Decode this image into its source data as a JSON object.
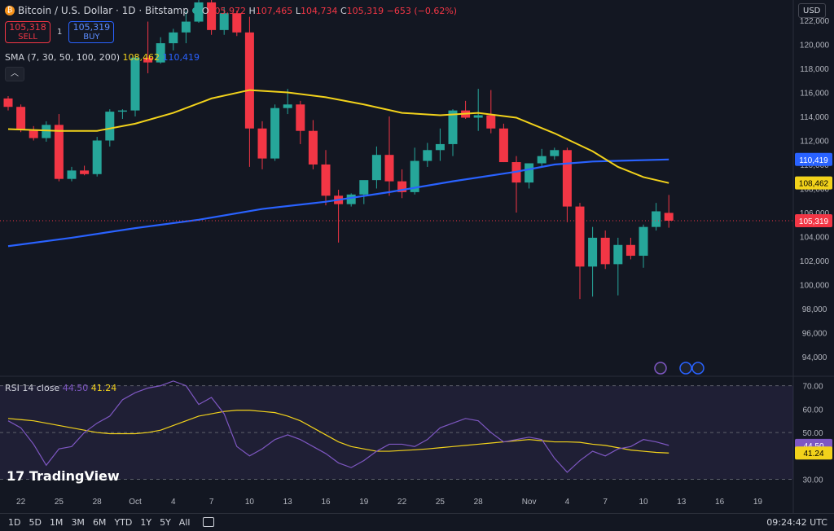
{
  "header": {
    "symbol": "Bitcoin / U.S. Dollar · 1D · Bitstamp",
    "o_label": "O",
    "o": "105,972",
    "h_label": "H",
    "h": "107,465",
    "l_label": "L",
    "l": "104,734",
    "c_label": "C",
    "c": "105,319",
    "change": "−653 (−0.62%)"
  },
  "trade": {
    "sell_price": "105,318",
    "sell_label": "SELL",
    "spread": "1",
    "buy_price": "105,319",
    "buy_label": "BUY"
  },
  "sma_legend": {
    "label": "SMA (7, 30, 50, 100, 200)",
    "v1": "108,462",
    "v2": "110,419"
  },
  "currency": "USD",
  "rsi_legend": {
    "label": "RSI 14 close",
    "v1": "44.50",
    "v2": "41.24"
  },
  "logo": "TradingView",
  "ranges": [
    "1D",
    "5D",
    "1M",
    "3M",
    "6M",
    "YTD",
    "1Y",
    "5Y",
    "All"
  ],
  "clock": "09:24:42 UTC",
  "colors": {
    "bg": "#131722",
    "up": "#26a69a",
    "down": "#f23645",
    "sma_yellow": "#f2d21b",
    "sma_blue": "#2962ff",
    "rsi": "#7e57c2"
  },
  "chart_data": [
    {
      "type": "candlestick",
      "price_axis_ticks": [
        94000,
        96000,
        98000,
        100000,
        102000,
        104000,
        106000,
        108000,
        110000,
        112000,
        114000,
        116000,
        118000,
        120000,
        122000
      ],
      "price_axis_tick_labels": [
        "94,000",
        "96,000",
        "98,000",
        "100,000",
        "102,000",
        "104,000",
        "106,000",
        "108,000",
        "110,000",
        "112,000",
        "114,000",
        "116,000",
        "118,000",
        "120,000",
        "122,000"
      ],
      "ylim": [
        92500,
        123700
      ],
      "x_tick_labels": [
        {
          "i": 1,
          "label": "22"
        },
        {
          "i": 4,
          "label": "25"
        },
        {
          "i": 7,
          "label": "28"
        },
        {
          "i": 10,
          "label": "Oct"
        },
        {
          "i": 13,
          "label": "4"
        },
        {
          "i": 16,
          "label": "7"
        },
        {
          "i": 19,
          "label": "10"
        },
        {
          "i": 22,
          "label": "13"
        },
        {
          "i": 25,
          "label": "16"
        },
        {
          "i": 28,
          "label": "19"
        },
        {
          "i": 31,
          "label": "22"
        },
        {
          "i": 34,
          "label": "25"
        },
        {
          "i": 37,
          "label": "28"
        },
        {
          "i": 41,
          "label": "Nov"
        },
        {
          "i": 44,
          "label": "4"
        },
        {
          "i": 47,
          "label": "7"
        },
        {
          "i": 50,
          "label": "10"
        },
        {
          "i": 53,
          "label": "13"
        },
        {
          "i": 56,
          "label": "16"
        },
        {
          "i": 59,
          "label": "19"
        }
      ],
      "ohlc": [
        [
          115500,
          115700,
          114500,
          114800
        ],
        [
          114800,
          115000,
          112700,
          112900
        ],
        [
          112900,
          113200,
          112000,
          112200
        ],
        [
          112200,
          113600,
          111900,
          113300
        ],
        [
          113300,
          114200,
          108600,
          108800
        ],
        [
          108800,
          109800,
          108600,
          109500
        ],
        [
          109500,
          109900,
          109100,
          109200
        ],
        [
          109200,
          112300,
          109000,
          112000
        ],
        [
          112000,
          114600,
          111500,
          114400
        ],
        [
          114400,
          114600,
          113800,
          114500
        ],
        [
          114500,
          119100,
          114000,
          118900
        ],
        [
          118900,
          121900,
          117600,
          118500
        ],
        [
          118500,
          120600,
          118400,
          120100
        ],
        [
          120100,
          121300,
          119500,
          121000
        ],
        [
          121000,
          122800,
          120100,
          121900
        ],
        [
          121900,
          125000,
          121800,
          123500
        ],
        [
          123500,
          124000,
          120800,
          121200
        ],
        [
          121200,
          123100,
          120800,
          122600
        ],
        [
          122600,
          122800,
          120700,
          121000
        ],
        [
          121000,
          122300,
          109800,
          113000
        ],
        [
          113000,
          113600,
          109600,
          110500
        ],
        [
          110500,
          115000,
          110300,
          114700
        ],
        [
          114700,
          116300,
          114200,
          115000
        ],
        [
          115000,
          115300,
          111700,
          112800
        ],
        [
          112800,
          113700,
          109600,
          110000
        ],
        [
          110000,
          111200,
          106600,
          107400
        ],
        [
          107400,
          107900,
          103500,
          106700
        ],
        [
          106700,
          107600,
          106500,
          107500
        ],
        [
          107500,
          108500,
          106700,
          108700
        ],
        [
          108700,
          111500,
          108000,
          110800
        ],
        [
          110800,
          114000,
          107400,
          108600
        ],
        [
          108600,
          109600,
          107200,
          107700
        ],
        [
          107700,
          111400,
          107500,
          110300
        ],
        [
          110300,
          111800,
          109800,
          111200
        ],
        [
          111200,
          113000,
          110300,
          111700
        ],
        [
          111700,
          114600,
          110700,
          114500
        ],
        [
          114500,
          115300,
          113800,
          113900
        ],
        [
          113900,
          116300,
          112800,
          114100
        ],
        [
          114100,
          116200,
          112600,
          113000
        ],
        [
          113000,
          113400,
          110200,
          110200
        ],
        [
          110200,
          110700,
          106000,
          108500
        ],
        [
          108500,
          110100,
          108000,
          110100
        ],
        [
          110100,
          111300,
          109800,
          110700
        ],
        [
          110700,
          111400,
          110400,
          111200
        ],
        [
          111200,
          111400,
          105200,
          106500
        ],
        [
          106500,
          106800,
          98800,
          101500
        ],
        [
          101500,
          104800,
          99000,
          103900
        ],
        [
          103900,
          104500,
          101300,
          101700
        ],
        [
          101700,
          103900,
          99100,
          103300
        ],
        [
          103300,
          103900,
          102100,
          102400
        ],
        [
          102400,
          105000,
          101400,
          104800
        ],
        [
          104800,
          106800,
          104500,
          106100
        ],
        [
          105972,
          107465,
          104734,
          105319
        ]
      ],
      "sma_yellow": {
        "label": "108,462",
        "points": [
          [
            0,
            112950
          ],
          [
            4,
            112800
          ],
          [
            7,
            112800
          ],
          [
            10,
            113400
          ],
          [
            13,
            114300
          ],
          [
            16,
            115500
          ],
          [
            19,
            116200
          ],
          [
            22,
            116000
          ],
          [
            25,
            115600
          ],
          [
            28,
            115000
          ],
          [
            31,
            114300
          ],
          [
            34,
            114100
          ],
          [
            37,
            114300
          ],
          [
            40,
            113900
          ],
          [
            43,
            112600
          ],
          [
            46,
            111100
          ],
          [
            48,
            109800
          ],
          [
            50,
            108950
          ],
          [
            52,
            108462
          ]
        ]
      },
      "sma_blue": {
        "label": "110,419",
        "points": [
          [
            0,
            103200
          ],
          [
            5,
            103900
          ],
          [
            10,
            104700
          ],
          [
            15,
            105400
          ],
          [
            20,
            106300
          ],
          [
            25,
            106900
          ],
          [
            30,
            107700
          ],
          [
            35,
            108600
          ],
          [
            40,
            109400
          ],
          [
            43,
            110000
          ],
          [
            46,
            110250
          ],
          [
            52,
            110419
          ]
        ]
      },
      "last_price_label": "105,319",
      "events": [
        "lightning-icon",
        "flag-icon",
        "flag-icon"
      ]
    },
    {
      "type": "line",
      "name": "RSI 14 close",
      "ylim": [
        26,
        73
      ],
      "yticks": [
        30,
        40,
        50,
        60,
        70
      ],
      "ytick_labels": [
        "30.00",
        "40.00",
        "50.00",
        "60.00",
        "70.00"
      ],
      "bands": {
        "upper": 70,
        "middle": 50,
        "lower": 30
      },
      "rsi": [
        55,
        52,
        45,
        36,
        43,
        44,
        50,
        54,
        57,
        64,
        67,
        69,
        70,
        72,
        70,
        62,
        65,
        58,
        44,
        40,
        43,
        47,
        49,
        47,
        44,
        41,
        37,
        35,
        38,
        42,
        45,
        45,
        44,
        47,
        52,
        54,
        56,
        55,
        50,
        46,
        47,
        48,
        47,
        39,
        33,
        38,
        42,
        40,
        43,
        44,
        47,
        46,
        44.5
      ],
      "signal": [
        56,
        55.5,
        55,
        54,
        53,
        52,
        51,
        50,
        49.5,
        49.5,
        49.5,
        50,
        51,
        53,
        55,
        57,
        58,
        59,
        59.5,
        59.5,
        59,
        58.5,
        57,
        55,
        52,
        49,
        46,
        44,
        43,
        42,
        42,
        42.3,
        42.6,
        43,
        43.5,
        44,
        44.5,
        45,
        45.5,
        46,
        46.5,
        47,
        46.5,
        46,
        46,
        45.8,
        45,
        44.5,
        43.5,
        42.5,
        42,
        41.5,
        41.24
      ],
      "last_labels": {
        "rsi": "44.50",
        "signal": "41.24"
      }
    }
  ]
}
